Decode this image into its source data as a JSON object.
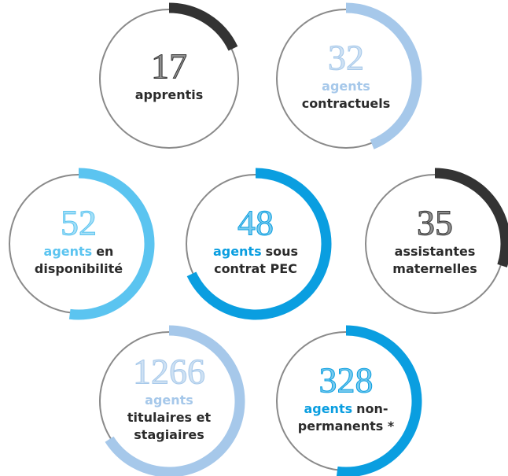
{
  "items": [
    {
      "number": "17",
      "color": "#333333",
      "lines": [
        [
          {
            "text": "apprentis"
          }
        ]
      ]
    },
    {
      "number": "32",
      "color": "#a6c8ea",
      "lines": [
        [
          {
            "text": "agents",
            "accent": true
          }
        ],
        [
          {
            "text": "contractuels"
          }
        ]
      ]
    },
    {
      "number": "52",
      "color": "#5bc4f0",
      "lines": [
        [
          {
            "text": "agents",
            "accent": true
          },
          {
            "text": "en"
          }
        ],
        [
          {
            "text": "disponibilité"
          }
        ]
      ]
    },
    {
      "number": "48",
      "color": "#0a9ee0",
      "lines": [
        [
          {
            "text": "agents",
            "accent": true
          },
          {
            "text": "sous"
          }
        ],
        [
          {
            "text": "contrat PEC"
          }
        ]
      ]
    },
    {
      "number": "35",
      "color": "#333333",
      "lines": [
        [
          {
            "text": "assistantes"
          }
        ],
        [
          {
            "text": "maternelles"
          }
        ]
      ]
    },
    {
      "number": "1266",
      "color": "#a6c8ea",
      "lines": [
        [
          {
            "text": "agents",
            "accent": true
          }
        ],
        [
          {
            "text": "titulaires et"
          }
        ],
        [
          {
            "text": "stagiaires"
          }
        ]
      ]
    },
    {
      "number": "328",
      "color": "#0a9ee0",
      "lines": [
        [
          {
            "text": "agents",
            "accent": true
          },
          {
            "text": "non-"
          }
        ],
        [
          {
            "text": "permanents *"
          }
        ]
      ]
    }
  ]
}
